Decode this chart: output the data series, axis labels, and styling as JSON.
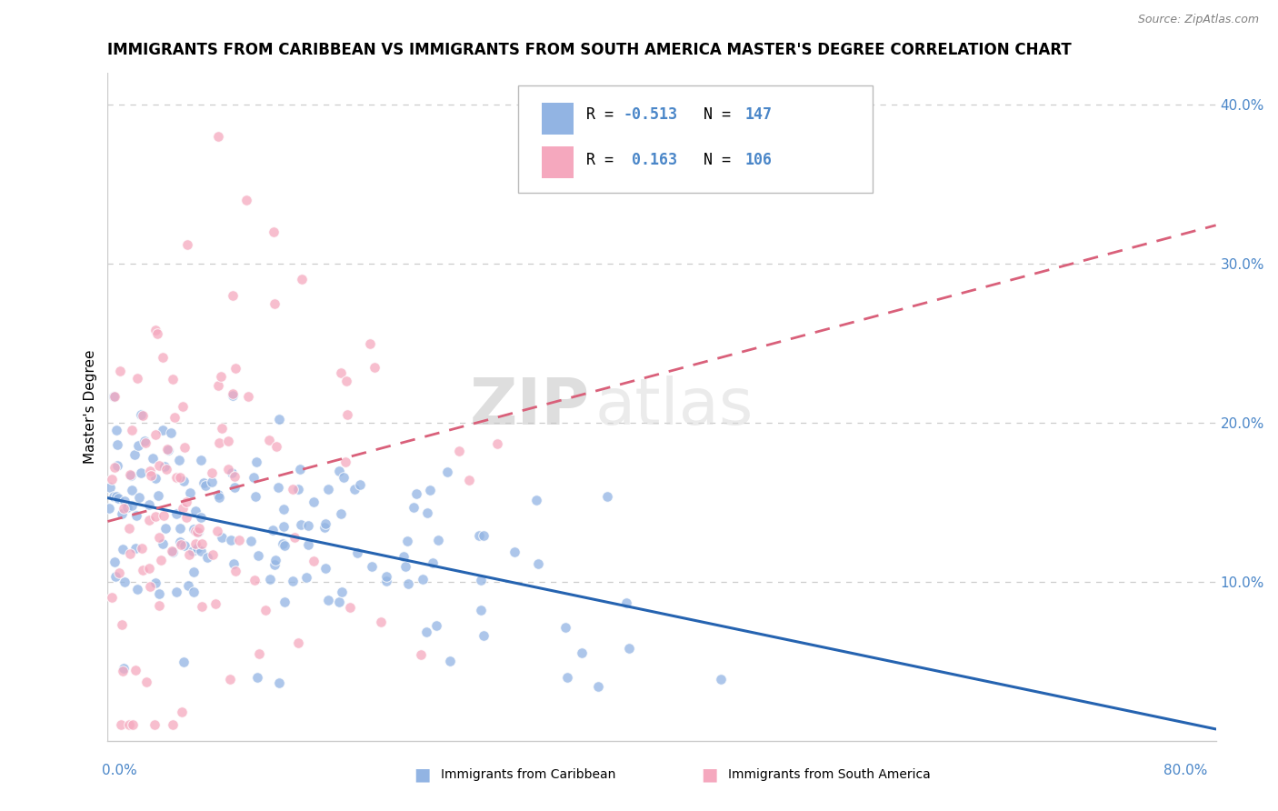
{
  "title": "IMMIGRANTS FROM CARIBBEAN VS IMMIGRANTS FROM SOUTH AMERICA MASTER'S DEGREE CORRELATION CHART",
  "source": "Source: ZipAtlas.com",
  "ylabel": "Master's Degree",
  "legend_bottom": [
    "Immigrants from Caribbean",
    "Immigrants from South America"
  ],
  "r_caribbean": -0.513,
  "n_caribbean": 147,
  "r_south_america": 0.163,
  "n_south_america": 106,
  "caribbean_color": "#92b4e3",
  "south_america_color": "#f5a8be",
  "caribbean_line_color": "#2563b0",
  "south_america_line_color": "#d9607a",
  "watermark_zip": "ZIP",
  "watermark_atlas": "atlas",
  "xlim": [
    0.0,
    0.8
  ],
  "ylim": [
    0.0,
    0.42
  ],
  "yticks": [
    0.1,
    0.2,
    0.3,
    0.4
  ],
  "ytick_labels": [
    "10.0%",
    "20.0%",
    "30.0%",
    "40.0%"
  ],
  "tick_color": "#4a86c8",
  "grid_color": "#cccccc",
  "title_fontsize": 12,
  "source_fontsize": 9
}
